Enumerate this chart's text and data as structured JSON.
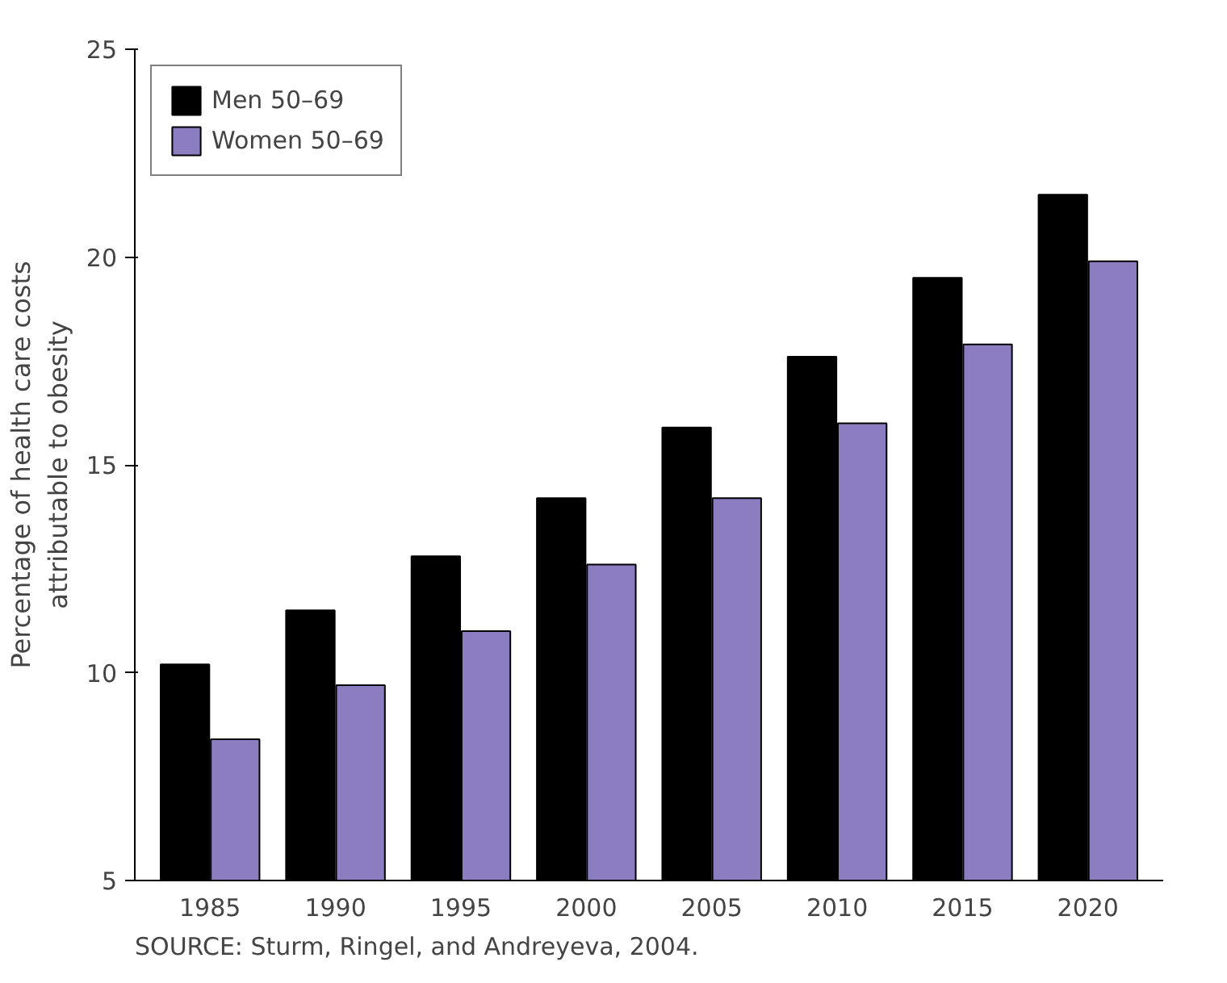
{
  "chart_data": {
    "type": "bar",
    "ylabel": "Percentage of health care costs\nattributable to obesity",
    "categories": [
      "1985",
      "1990",
      "1995",
      "2000",
      "2005",
      "2010",
      "2015",
      "2020"
    ],
    "series": [
      {
        "name": "Men 50–69",
        "color": "#000000",
        "values": [
          10.2,
          11.5,
          12.8,
          14.2,
          15.9,
          17.6,
          19.5,
          21.5
        ]
      },
      {
        "name": "Women 50–69",
        "color": "#8c7cc0",
        "values": [
          8.4,
          9.7,
          11.0,
          12.6,
          14.2,
          16.0,
          17.9,
          19.9
        ]
      }
    ],
    "ylim": [
      5,
      25
    ],
    "yticks": [
      5,
      10,
      15,
      20,
      25
    ],
    "grid": false,
    "legend": "top left",
    "annotations": [
      "SOURCE: Sturm, Ringel, and Andreyeva, 2004."
    ]
  }
}
